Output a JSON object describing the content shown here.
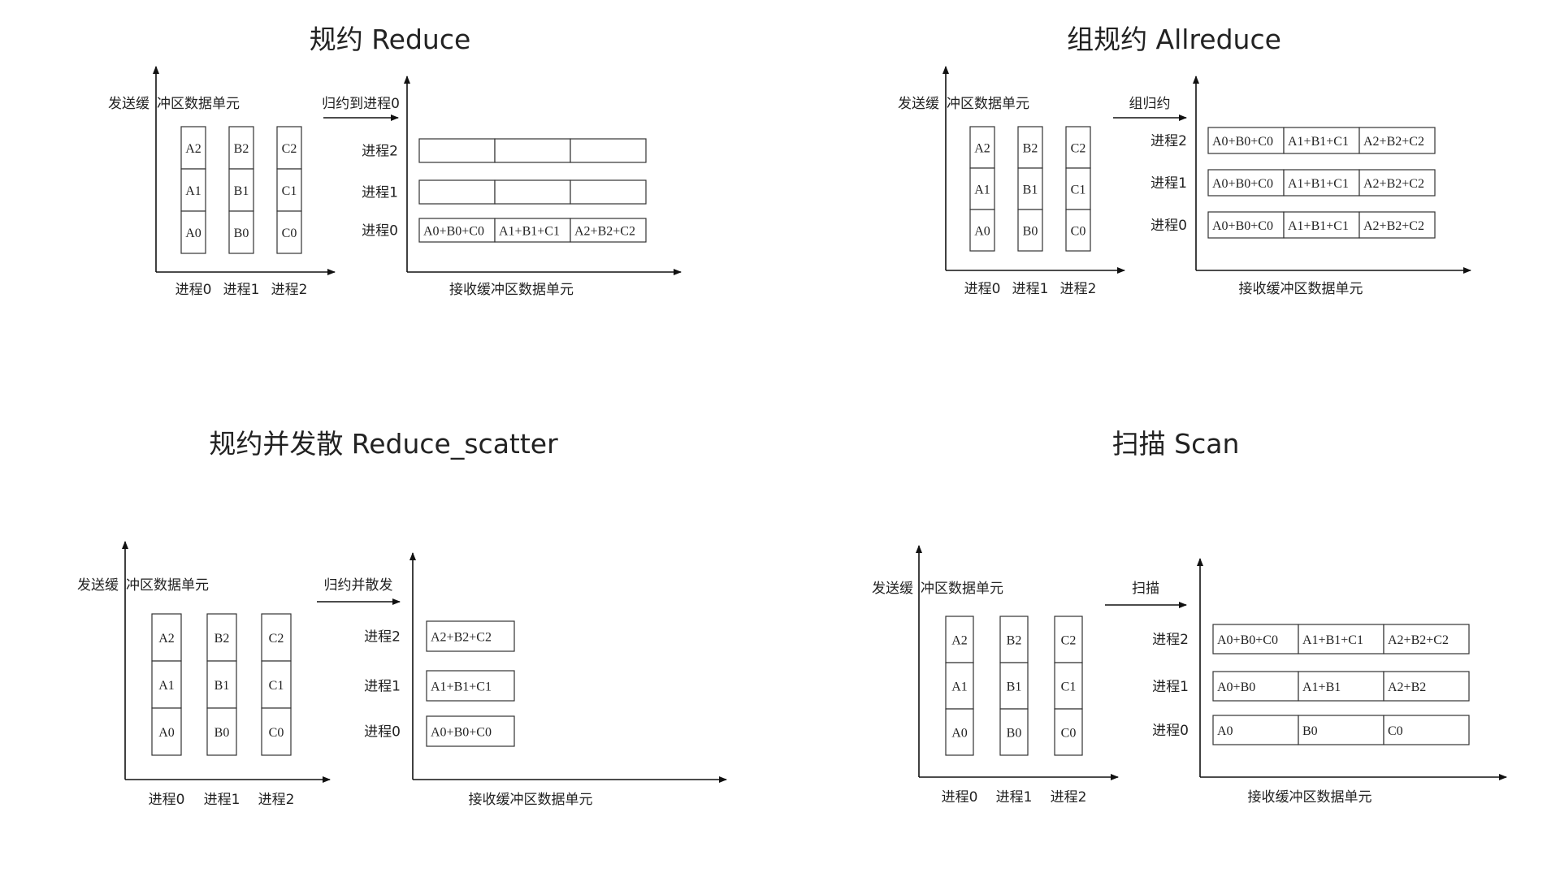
{
  "common": {
    "send_label_a": "发送缓",
    "send_label_b": "冲区数据单元",
    "recv_label": "接收缓冲区数据单元",
    "procs": [
      "进程0",
      "进程1",
      "进程2"
    ],
    "send_cells": [
      [
        "A2",
        "A1",
        "A0"
      ],
      [
        "B2",
        "B1",
        "B0"
      ],
      [
        "C2",
        "C1",
        "C0"
      ]
    ]
  },
  "panels": [
    {
      "title": "规约 Reduce",
      "op": "归约到进程0",
      "rows": [
        [
          "",
          "",
          ""
        ],
        [
          "",
          "",
          ""
        ],
        [
          "A0+B0+C0",
          "A1+B1+C1",
          "A2+B2+C2"
        ]
      ]
    },
    {
      "title": "组规约   Allreduce",
      "op": "组归约",
      "rows": [
        [
          "A0+B0+C0",
          "A1+B1+C1",
          "A2+B2+C2"
        ],
        [
          "A0+B0+C0",
          "A1+B1+C1",
          "A2+B2+C2"
        ],
        [
          "A0+B0+C0",
          "A1+B1+C1",
          "A2+B2+C2"
        ]
      ]
    },
    {
      "title": "规约并发散 Reduce_scatter",
      "op": "归约并散发",
      "rows": [
        [
          "A2+B2+C2"
        ],
        [
          "A1+B1+C1"
        ],
        [
          "A0+B0+C0"
        ]
      ]
    },
    {
      "title": "扫描  Scan",
      "op": "扫描",
      "rows": [
        [
          "A0+B0+C0",
          "A1+B1+C1",
          "A2+B2+C2"
        ],
        [
          "A0+B0",
          "A1+B1",
          "A2+B2"
        ],
        [
          "A0",
          "B0",
          "C0"
        ]
      ]
    }
  ]
}
